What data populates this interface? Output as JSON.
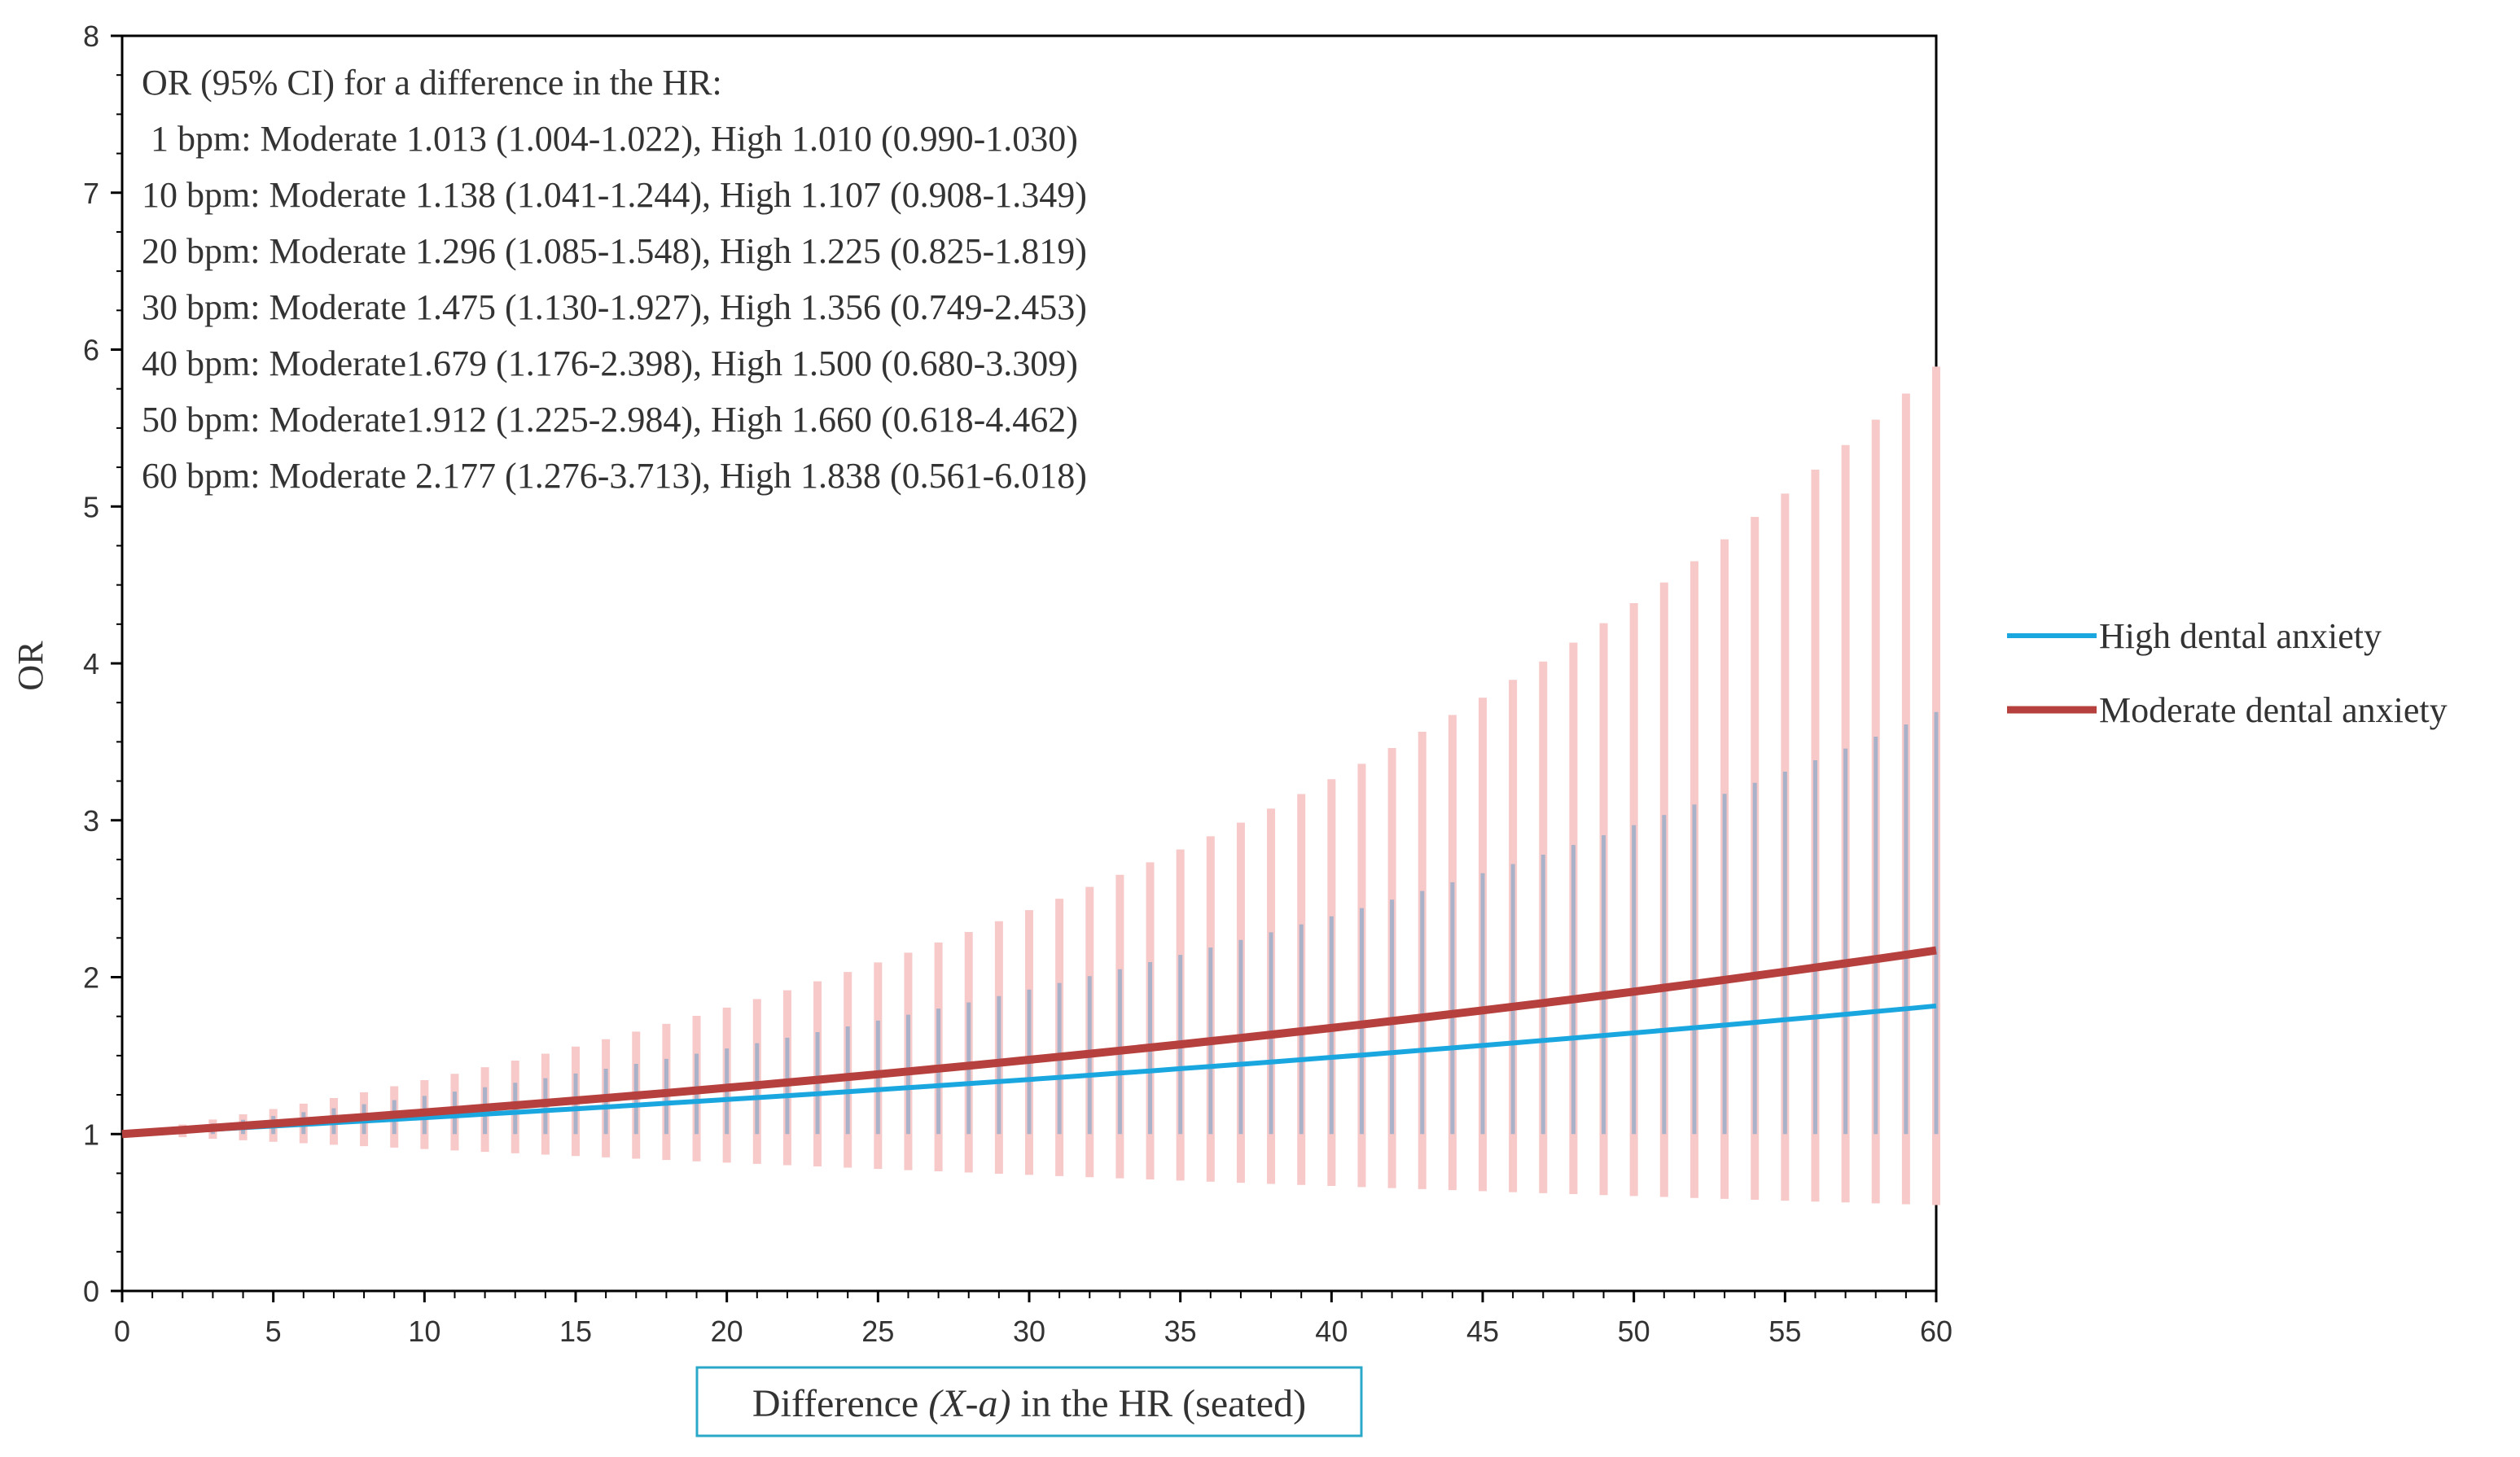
{
  "chart_data": {
    "type": "line",
    "title": "",
    "xlabel_parts": [
      "Difference ",
      "(X-a)",
      " in the HR (seated)"
    ],
    "ylabel": "OR",
    "xlim": [
      0,
      60
    ],
    "ylim": [
      0,
      8
    ],
    "x_ticks": [
      0,
      5,
      10,
      15,
      20,
      25,
      30,
      35,
      40,
      45,
      50,
      55,
      60
    ],
    "y_ticks": [
      0,
      1,
      2,
      3,
      4,
      5,
      6,
      7,
      8
    ],
    "x_minor_step": 1,
    "y_minor_step": 0.25,
    "grid": false,
    "legend_position": "right",
    "colors": {
      "high": "#1aa7e0",
      "moderate": "#b5403d",
      "moderate_ci": "#f7c9c9",
      "high_ci": "#a9b2c8"
    },
    "series": [
      {
        "key": "high",
        "name": "High dental anxiety",
        "or_per_bpm": 1.01,
        "ci_per_bpm": [
          0.99,
          1.03
        ]
      },
      {
        "key": "moderate",
        "name": "Moderate dental anxiety",
        "or_per_bpm": 1.013,
        "ci_per_bpm": [
          1.004,
          1.022
        ]
      }
    ],
    "annotation_lines": [
      "OR (95% CI) for a difference in the HR:",
      " 1 bpm: Moderate 1.013 (1.004-1.022), High 1.010 (0.990-1.030)",
      "10 bpm: Moderate 1.138 (1.041-1.244), High 1.107 (0.908-1.349)",
      "20 bpm: Moderate 1.296 (1.085-1.548), High 1.225 (0.825-1.819)",
      "30 bpm: Moderate 1.475 (1.130-1.927), High 1.356 (0.749-2.453)",
      "40 bpm: Moderate1.679 (1.176-2.398), High 1.500 (0.680-3.309)",
      "50 bpm: Moderate1.912 (1.225-2.984), High 1.660 (0.618-4.462)",
      "60 bpm: Moderate 2.177 (1.276-3.713), High 1.838 (0.561-6.018)"
    ]
  }
}
